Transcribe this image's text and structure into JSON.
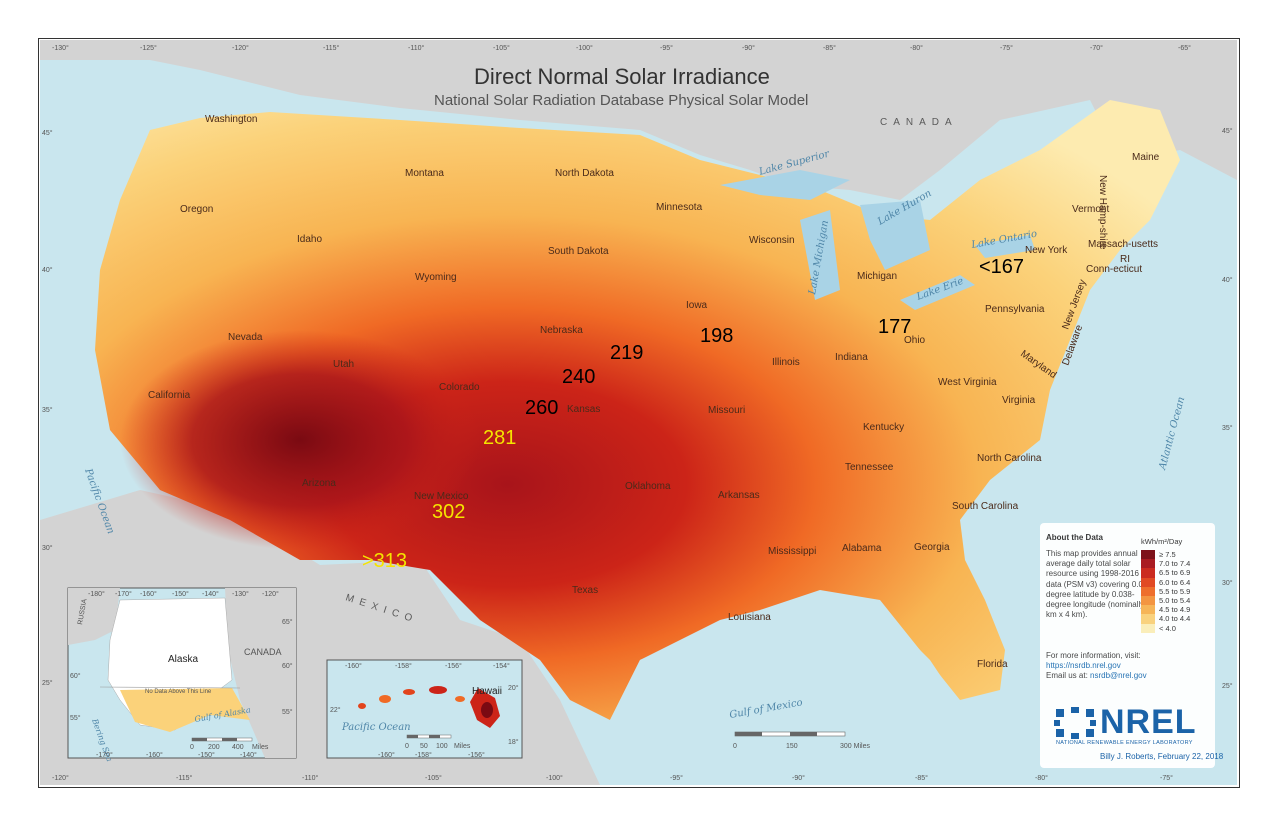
{
  "title": "Direct Normal Solar Irradiance",
  "subtitle": "National Solar Radiation Database Physical Solar Model",
  "top_longitudes": [
    "-130°",
    "-125°",
    "-120°",
    "-115°",
    "-110°",
    "-105°",
    "-100°",
    "-95°",
    "-90°",
    "-85°",
    "-80°",
    "-75°",
    "-70°",
    "-65°"
  ],
  "bottom_longitudes": [
    "-120°",
    "-115°",
    "-110°",
    "-105°",
    "-100°",
    "-95°",
    "-90°",
    "-85°",
    "-80°",
    "-75°"
  ],
  "left_latitudes": [
    "45°",
    "40°",
    "35°",
    "30°",
    "25°"
  ],
  "right_latitudes": [
    "45°",
    "40°",
    "35°",
    "30°",
    "25°"
  ],
  "countries": [
    "CANADA",
    "MEXICO"
  ],
  "waters": [
    "Pacific Ocean",
    "Atlantic Ocean",
    "Gulf of Mexico",
    "Lake Superior",
    "Lake Michigan",
    "Lake Huron",
    "Lake Erie",
    "Lake Ontario"
  ],
  "states": [
    "Washington",
    "Oregon",
    "California",
    "Nevada",
    "Idaho",
    "Montana",
    "Wyoming",
    "Utah",
    "Arizona",
    "Colorado",
    "New Mexico",
    "North Dakota",
    "South Dakota",
    "Nebraska",
    "Kansas",
    "Oklahoma",
    "Texas",
    "Minnesota",
    "Iowa",
    "Missouri",
    "Arkansas",
    "Louisiana",
    "Wisconsin",
    "Illinois",
    "Michigan",
    "Indiana",
    "Ohio",
    "Kentucky",
    "Tennessee",
    "Mississippi",
    "Alabama",
    "Georgia",
    "Florida",
    "South Carolina",
    "North Carolina",
    "Virginia",
    "West Virginia",
    "Pennsylvania",
    "New York",
    "Vermont",
    "New Hamp-shire",
    "Maine",
    "Massach-usetts",
    "Conn-ecticut",
    "RI",
    "New Jersey",
    "Delaware",
    "Maryland"
  ],
  "point_labels": [
    {
      "text": "<167",
      "color": "black"
    },
    {
      "text": "177",
      "color": "black"
    },
    {
      "text": "198",
      "color": "black"
    },
    {
      "text": "219",
      "color": "black"
    },
    {
      "text": "240",
      "color": "black"
    },
    {
      "text": "260",
      "color": "black"
    },
    {
      "text": "281",
      "color": "yellow"
    },
    {
      "text": "302",
      "color": "yellow"
    },
    {
      "text": ">313",
      "color": "yellow"
    }
  ],
  "alaska_inset": {
    "name": "Alaska",
    "russia": "RUSSIA",
    "canada": "CANADA",
    "no_data": "No Data Above This Line",
    "bering": "Bering Sea",
    "gulf": "Gulf of Alaska",
    "top_ticks": [
      "-180°",
      "-170°",
      "-160°",
      "-150°",
      "-140°",
      "-130°",
      "-120°"
    ],
    "bottom_ticks": [
      "-170°",
      "-160°",
      "-150°",
      "-140°"
    ],
    "lat_ticks": [
      "65°",
      "60°",
      "55°"
    ],
    "left_lat_ticks": [
      "60°",
      "55°"
    ],
    "scale": [
      "0",
      "200",
      "400",
      "Miles"
    ]
  },
  "hawaii_inset": {
    "name": "Hawaii",
    "ocean": "Pacific Ocean",
    "top_ticks": [
      "-160°",
      "-158°",
      "-156°",
      "-154°"
    ],
    "bottom_ticks": [
      "-160°",
      "-158°",
      "-156°"
    ],
    "lat_ticks": [
      "20°",
      "18°"
    ],
    "left_lat": "22°",
    "scale": [
      "0",
      "50",
      "100",
      "Miles"
    ]
  },
  "main_scale": [
    "0",
    "150",
    "300 Miles"
  ],
  "about": {
    "title": "About the Data",
    "description": "This map provides annual average daily total solar resource using 1998-2016 data (PSM v3) covering 0.038-degree latitude by 0.038-degree longitude (nominally 4 km x 4 km).",
    "more_info": "For more information, visit:",
    "link": "https://nsrdb.nrel.gov",
    "email_prefix": "Email us at: ",
    "email": "nsrdb@nrel.gov"
  },
  "legend": {
    "unit": "kWh/m²/Day",
    "items": [
      {
        "label": "≥ 7.5",
        "color": "#7a0a12"
      },
      {
        "label": "7.0 to 7.4",
        "color": "#a8141a"
      },
      {
        "label": "6.5 to 6.9",
        "color": "#cc2418"
      },
      {
        "label": "6.0 to 6.4",
        "color": "#e2441c"
      },
      {
        "label": "5.5 to 5.9",
        "color": "#f06a25"
      },
      {
        "label": "5.0 to 5.4",
        "color": "#f5923a"
      },
      {
        "label": "4.5 to 4.9",
        "color": "#f8b452"
      },
      {
        "label": "4.0 to 4.4",
        "color": "#fbd27a"
      },
      {
        "label": "< 4.0",
        "color": "#fdefb8"
      }
    ]
  },
  "logo": {
    "name": "NREL",
    "lab": "NATIONAL RENEWABLE ENERGY LABORATORY"
  },
  "credit": "Billy J. Roberts, February 22, 2018",
  "colors": {
    "ocean": "#c9e6ee",
    "land_gray": "#d3d3d3",
    "frame": "#333333"
  }
}
